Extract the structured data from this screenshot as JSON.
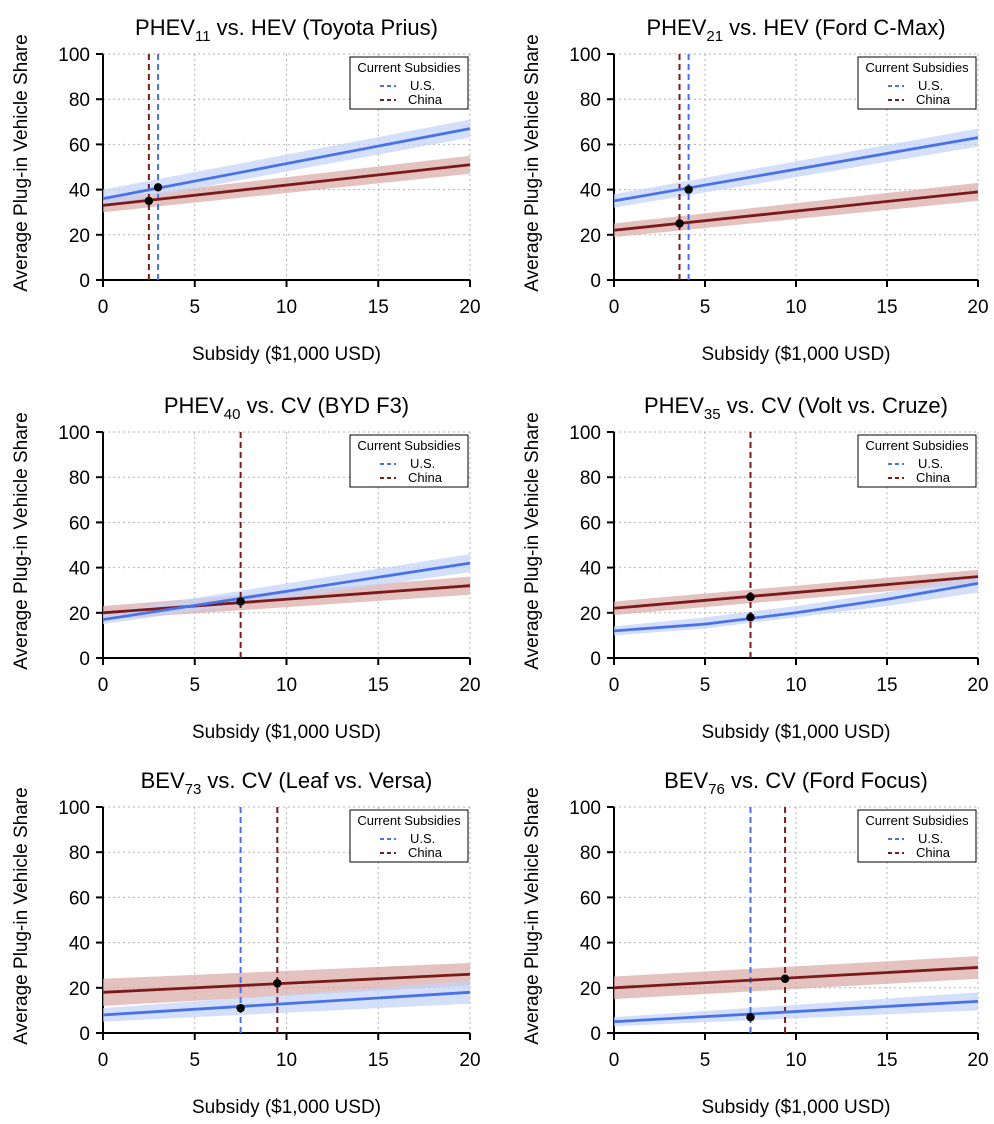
{
  "colors": {
    "us_line": "#4a72e8",
    "us_band": "#c4d3f6",
    "china_line": "#7a1a1a",
    "china_band": "#d9aaa6",
    "grid": "#b3b3b3",
    "marker": "#000000"
  },
  "legend": {
    "title": "Current Subsidies",
    "us_label": "U.S.",
    "china_label": "China"
  },
  "shared": {
    "xlabel": "Subsidy ($1,000 USD)",
    "ylabel": "Average Plug-in Vehicle Share",
    "xlim": [
      0,
      20
    ],
    "ylim": [
      0,
      100
    ],
    "xticks": [
      "0",
      "5",
      "10",
      "15",
      "20"
    ],
    "yticks": [
      "0",
      "20",
      "40",
      "60",
      "80",
      "100"
    ],
    "grid": true,
    "legend_position": "top-right"
  },
  "chart_data": [
    {
      "type": "line",
      "title_main": "PHEV",
      "title_sub": "11",
      "title_rest": " vs. HEV (Toyota Prius)",
      "series": [
        {
          "name": "U.S.",
          "x": [
            0,
            20
          ],
          "y": [
            36,
            67
          ],
          "band_low": [
            33,
            63
          ],
          "band_high": [
            40,
            71
          ]
        },
        {
          "name": "China",
          "x": [
            0,
            20
          ],
          "y": [
            33,
            51
          ],
          "band_low": [
            30,
            47
          ],
          "band_high": [
            36,
            55
          ]
        }
      ],
      "subsidy_us": 3.0,
      "subsidy_china": 2.5,
      "markers": [
        {
          "x": 3.0,
          "y": 41
        },
        {
          "x": 2.5,
          "y": 35
        }
      ]
    },
    {
      "type": "line",
      "title_main": "PHEV",
      "title_sub": "21",
      "title_rest": " vs. HEV (Ford C-Max)",
      "series": [
        {
          "name": "U.S.",
          "x": [
            0,
            20
          ],
          "y": [
            35,
            63
          ],
          "band_low": [
            32,
            59
          ],
          "band_high": [
            38,
            67
          ]
        },
        {
          "name": "China",
          "x": [
            0,
            20
          ],
          "y": [
            22,
            39
          ],
          "band_low": [
            19,
            35
          ],
          "band_high": [
            25,
            43
          ]
        }
      ],
      "subsidy_us": 4.1,
      "subsidy_china": 3.6,
      "markers": [
        {
          "x": 4.1,
          "y": 40
        },
        {
          "x": 3.6,
          "y": 25
        }
      ]
    },
    {
      "type": "line",
      "title_main": "PHEV",
      "title_sub": "40",
      "title_rest": " vs. CV (BYD F3)",
      "series": [
        {
          "name": "U.S.",
          "x": [
            0,
            20
          ],
          "y": [
            17,
            42
          ],
          "band_low": [
            15,
            38
          ],
          "band_high": [
            20,
            46
          ]
        },
        {
          "name": "China",
          "x": [
            0,
            20
          ],
          "y": [
            20,
            32
          ],
          "band_low": [
            17,
            28
          ],
          "band_high": [
            23,
            36
          ]
        }
      ],
      "subsidy_us": null,
      "subsidy_china": 7.5,
      "markers": [
        {
          "x": 7.5,
          "y": 25
        }
      ]
    },
    {
      "type": "line",
      "title_main": "PHEV",
      "title_sub": "35",
      "title_rest": " vs. CV (Volt vs. Cruze)",
      "series": [
        {
          "name": "U.S.",
          "x": [
            0,
            5,
            10,
            15,
            20
          ],
          "y": [
            12,
            15,
            20,
            26,
            33
          ],
          "band_low": [
            10,
            13,
            18,
            23,
            29
          ],
          "band_high": [
            14,
            18,
            23,
            29,
            37
          ]
        },
        {
          "name": "China",
          "x": [
            0,
            20
          ],
          "y": [
            22,
            36
          ],
          "band_low": [
            19,
            33
          ],
          "band_high": [
            25,
            39
          ]
        }
      ],
      "subsidy_us": null,
      "subsidy_china": 7.5,
      "markers": [
        {
          "x": 7.5,
          "y": 27
        },
        {
          "x": 7.5,
          "y": 18
        }
      ]
    },
    {
      "type": "line",
      "title_main": "BEV",
      "title_sub": "73",
      "title_rest": " vs. CV (Leaf vs. Versa)",
      "series": [
        {
          "name": "U.S.",
          "x": [
            0,
            20
          ],
          "y": [
            8,
            18
          ],
          "band_low": [
            5,
            13
          ],
          "band_high": [
            11,
            23
          ]
        },
        {
          "name": "China",
          "x": [
            0,
            20
          ],
          "y": [
            18,
            26
          ],
          "band_low": [
            12,
            21
          ],
          "band_high": [
            24,
            31
          ]
        }
      ],
      "subsidy_us": 7.5,
      "subsidy_china": 9.5,
      "markers": [
        {
          "x": 7.5,
          "y": 11
        },
        {
          "x": 9.5,
          "y": 22
        }
      ]
    },
    {
      "type": "line",
      "title_main": "BEV",
      "title_sub": "76",
      "title_rest": " vs. CV (Ford Focus)",
      "series": [
        {
          "name": "U.S.",
          "x": [
            0,
            20
          ],
          "y": [
            5,
            14
          ],
          "band_low": [
            3,
            10
          ],
          "band_high": [
            7,
            18
          ]
        },
        {
          "name": "China",
          "x": [
            0,
            20
          ],
          "y": [
            20,
            29
          ],
          "band_low": [
            15,
            24
          ],
          "band_high": [
            25,
            34
          ]
        }
      ],
      "subsidy_us": 7.5,
      "subsidy_china": 9.4,
      "markers": [
        {
          "x": 7.5,
          "y": 7
        },
        {
          "x": 9.4,
          "y": 24
        }
      ]
    }
  ]
}
